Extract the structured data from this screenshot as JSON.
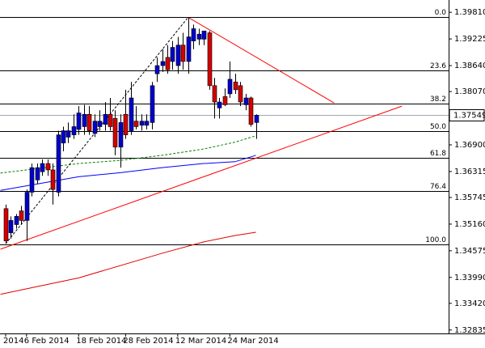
{
  "chart_data": {
    "type": "candlestick",
    "categories": [
      "2014",
      null,
      null,
      null,
      "6 Feb 2014",
      null,
      null,
      null,
      null,
      null,
      null,
      null,
      null,
      null,
      "18 Feb 2014",
      null,
      null,
      null,
      null,
      null,
      null,
      null,
      null,
      "28 Feb 2014",
      null,
      null,
      null,
      null,
      null,
      null,
      null,
      null,
      null,
      "12 Mar 2014",
      null,
      null,
      null,
      null,
      null,
      null,
      null,
      null,
      null,
      "24 Mar 2014",
      null,
      null,
      null,
      null,
      null
    ],
    "open": [
      1.355,
      1.3497,
      1.3515,
      1.3545,
      1.3524,
      1.3586,
      1.3613,
      1.3631,
      1.3649,
      1.3635,
      1.3586,
      1.3694,
      1.3707,
      1.3712,
      1.3724,
      1.373,
      1.3757,
      1.3715,
      1.373,
      1.3735,
      1.3757,
      1.3748,
      1.3685,
      1.3757,
      1.3721,
      1.3742,
      1.3733,
      1.3733,
      1.3739,
      1.3846,
      1.3864,
      1.3882,
      1.3873,
      1.3864,
      1.3909,
      1.3873,
      1.3918,
      1.3922,
      1.3922,
      1.3936,
      1.382,
      1.3771,
      1.3796,
      1.3802,
      1.3828,
      1.382,
      1.3778,
      1.3793,
      1.3739
    ],
    "high": [
      1.3559,
      1.3533,
      1.3538,
      1.3556,
      1.3592,
      1.3649,
      1.3649,
      1.3658,
      1.3658,
      1.3649,
      1.3721,
      1.373,
      1.3739,
      1.3757,
      1.3775,
      1.3778,
      1.3775,
      1.3757,
      1.3766,
      1.3784,
      1.3793,
      1.3766,
      1.3757,
      1.3811,
      1.3828,
      1.3775,
      1.3757,
      1.3757,
      1.3828,
      1.3882,
      1.39,
      1.3909,
      1.3918,
      1.3927,
      1.3936,
      1.397,
      1.3954,
      1.3945,
      1.394,
      1.394,
      1.3837,
      1.3793,
      1.3814,
      1.3873,
      1.3846,
      1.3828,
      1.3802,
      1.3796,
      1.3757
    ],
    "low": [
      1.3473,
      1.3484,
      1.3506,
      1.3515,
      1.3479,
      1.3577,
      1.3604,
      1.3622,
      1.3622,
      1.3559,
      1.3577,
      1.3676,
      1.3694,
      1.3703,
      1.3712,
      1.3712,
      1.3712,
      1.3707,
      1.3721,
      1.3721,
      1.3721,
      1.3667,
      1.364,
      1.3703,
      1.3712,
      1.3724,
      1.3721,
      1.3724,
      1.3724,
      1.3828,
      1.385,
      1.3846,
      1.3855,
      1.3846,
      1.3855,
      1.3846,
      1.39,
      1.3909,
      1.3909,
      1.3811,
      1.3748,
      1.3748,
      1.3775,
      1.3793,
      1.3802,
      1.3775,
      1.3766,
      1.373,
      1.3703
    ],
    "close": [
      1.3479,
      1.3524,
      1.3533,
      1.3524,
      1.3586,
      1.364,
      1.364,
      1.3649,
      1.3635,
      1.3592,
      1.3712,
      1.3721,
      1.3721,
      1.373,
      1.376,
      1.3757,
      1.3721,
      1.3742,
      1.3742,
      1.3757,
      1.373,
      1.3685,
      1.3739,
      1.3712,
      1.3793,
      1.373,
      1.3742,
      1.3742,
      1.382,
      1.3864,
      1.3873,
      1.3855,
      1.3904,
      1.3909,
      1.3873,
      1.3927,
      1.3945,
      1.3933,
      1.394,
      1.382,
      1.3784,
      1.3784,
      1.3778,
      1.3834,
      1.3811,
      1.3784,
      1.3793,
      1.3735,
      1.3755
    ],
    "up_color": "#0000cc",
    "down_color": "#d40000",
    "ylim": [
      1.3276,
      1.4008
    ],
    "yticks": [
      {
        "value": 1.3981,
        "label": "1.39810"
      },
      1.39225,
      {
        "value": 1.3864,
        "label": "1.38640"
      },
      {
        "value": 1.3807,
        "label": "1.38070"
      },
      {
        "value": 1.369,
        "label": "1.36900"
      },
      1.36315,
      1.35745,
      {
        "value": 1.3516,
        "label": "1.35160"
      },
      1.34575,
      {
        "value": 1.3399,
        "label": "1.33990"
      },
      {
        "value": 1.3342,
        "label": "1.33420"
      },
      1.32835
    ],
    "last_price": 1.37549,
    "fib_levels": [
      {
        "label": "0.0",
        "value": 1.397
      },
      {
        "label": "23.6",
        "value": 1.3854
      },
      {
        "label": "38.2",
        "value": 1.378
      },
      {
        "label": "50.0",
        "value": 1.3721
      },
      {
        "label": "61.8",
        "value": 1.3662
      },
      {
        "label": "76.4",
        "value": 1.3588
      },
      {
        "label": "100.0",
        "value": 1.3472
      }
    ],
    "moving_averages": [
      {
        "color": "#008000",
        "dashed": true,
        "x": [
          -1,
          14,
          22,
          30,
          38,
          44,
          48
        ],
        "values": [
          1.3628,
          1.3649,
          1.3656,
          1.3667,
          1.3681,
          1.3696,
          1.371
        ]
      },
      {
        "color": "#0000ff",
        "dashed": false,
        "x": [
          -1,
          7,
          14,
          22,
          30,
          38,
          44,
          48
        ],
        "values": [
          1.359,
          1.3606,
          1.362,
          1.3629,
          1.364,
          1.3649,
          1.3653,
          1.3667
        ]
      },
      {
        "color": "#e00000",
        "dashed": false,
        "x": [
          -1,
          14,
          30,
          38,
          44,
          48
        ],
        "values": [
          1.3362,
          1.3398,
          1.3452,
          1.3477,
          1.3491,
          1.3498
        ]
      }
    ],
    "trend_lines": [
      {
        "color": "#ff0000",
        "dashed": false,
        "x": [
          -1,
          76
        ],
        "values": [
          1.3461,
          1.3775
        ]
      },
      {
        "color": "#ff0000",
        "dashed": false,
        "x": [
          35,
          63
        ],
        "values": [
          1.397,
          1.3782
        ]
      },
      {
        "color": "#000000",
        "dashed": true,
        "x": [
          0,
          35
        ],
        "values": [
          1.3473,
          1.397
        ]
      }
    ]
  }
}
